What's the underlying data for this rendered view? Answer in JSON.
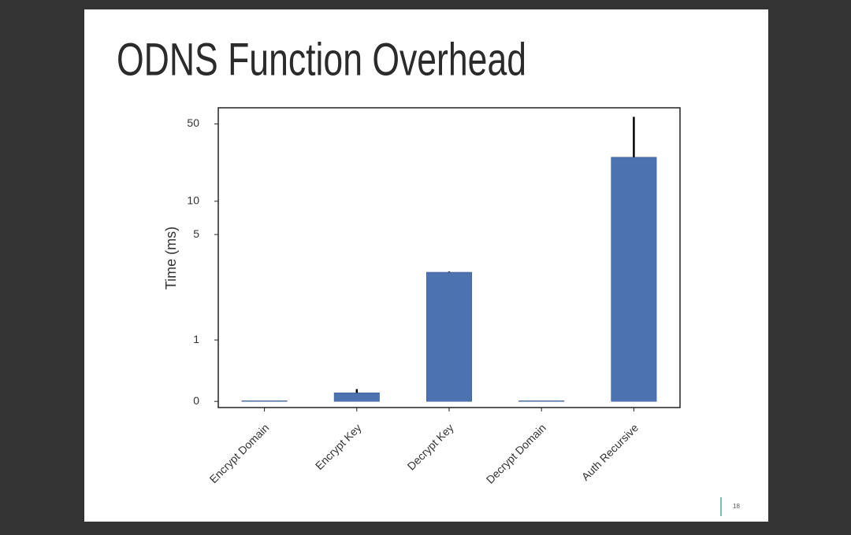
{
  "slide": {
    "page_number": "18"
  },
  "chart_data": {
    "type": "bar",
    "title": "ODNS Function Overhead",
    "y_label": "Time (ms)",
    "categories": [
      "Encrypt Domain",
      "Encrypt Key",
      "Decrypt Key",
      "Decrypt Domain",
      "Auth Recursive"
    ],
    "values": [
      0.01,
      0.14,
      2.28,
      0.01,
      25
    ],
    "errors": [
      0,
      0.06,
      0.03,
      0,
      33
    ],
    "color": "#4c72b0",
    "yscale": "symlog",
    "linthresh": 2,
    "ylim": [
      -0.1,
      70
    ],
    "yticks": [
      0,
      1,
      5,
      10,
      50
    ],
    "grid": false
  }
}
